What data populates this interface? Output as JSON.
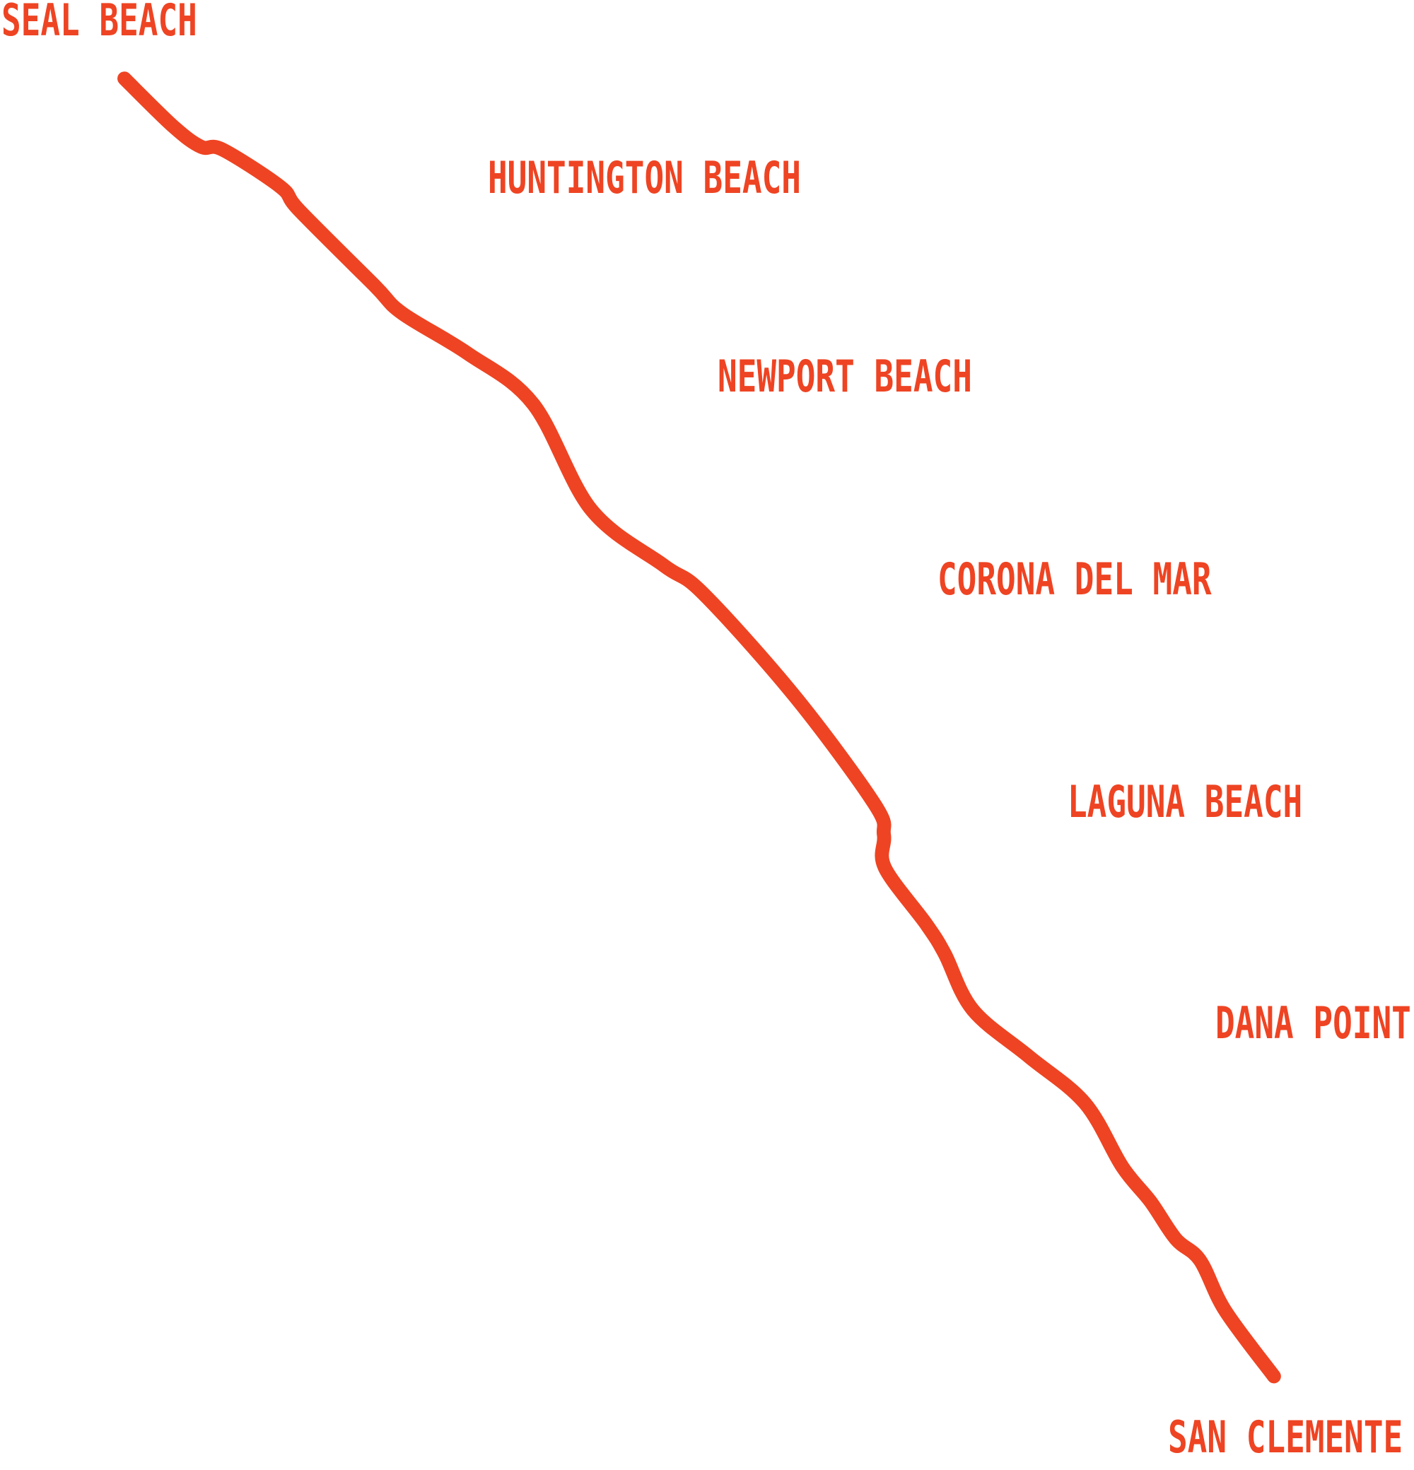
{
  "labels": [
    "SEAL BEACH",
    "HUNTINGTON BEACH",
    "NEWPORT BEACH",
    "CORONA DEL MAR",
    "LAGUNA BEACH",
    "DANA POINT",
    "SAN CLEMENTE"
  ]
}
